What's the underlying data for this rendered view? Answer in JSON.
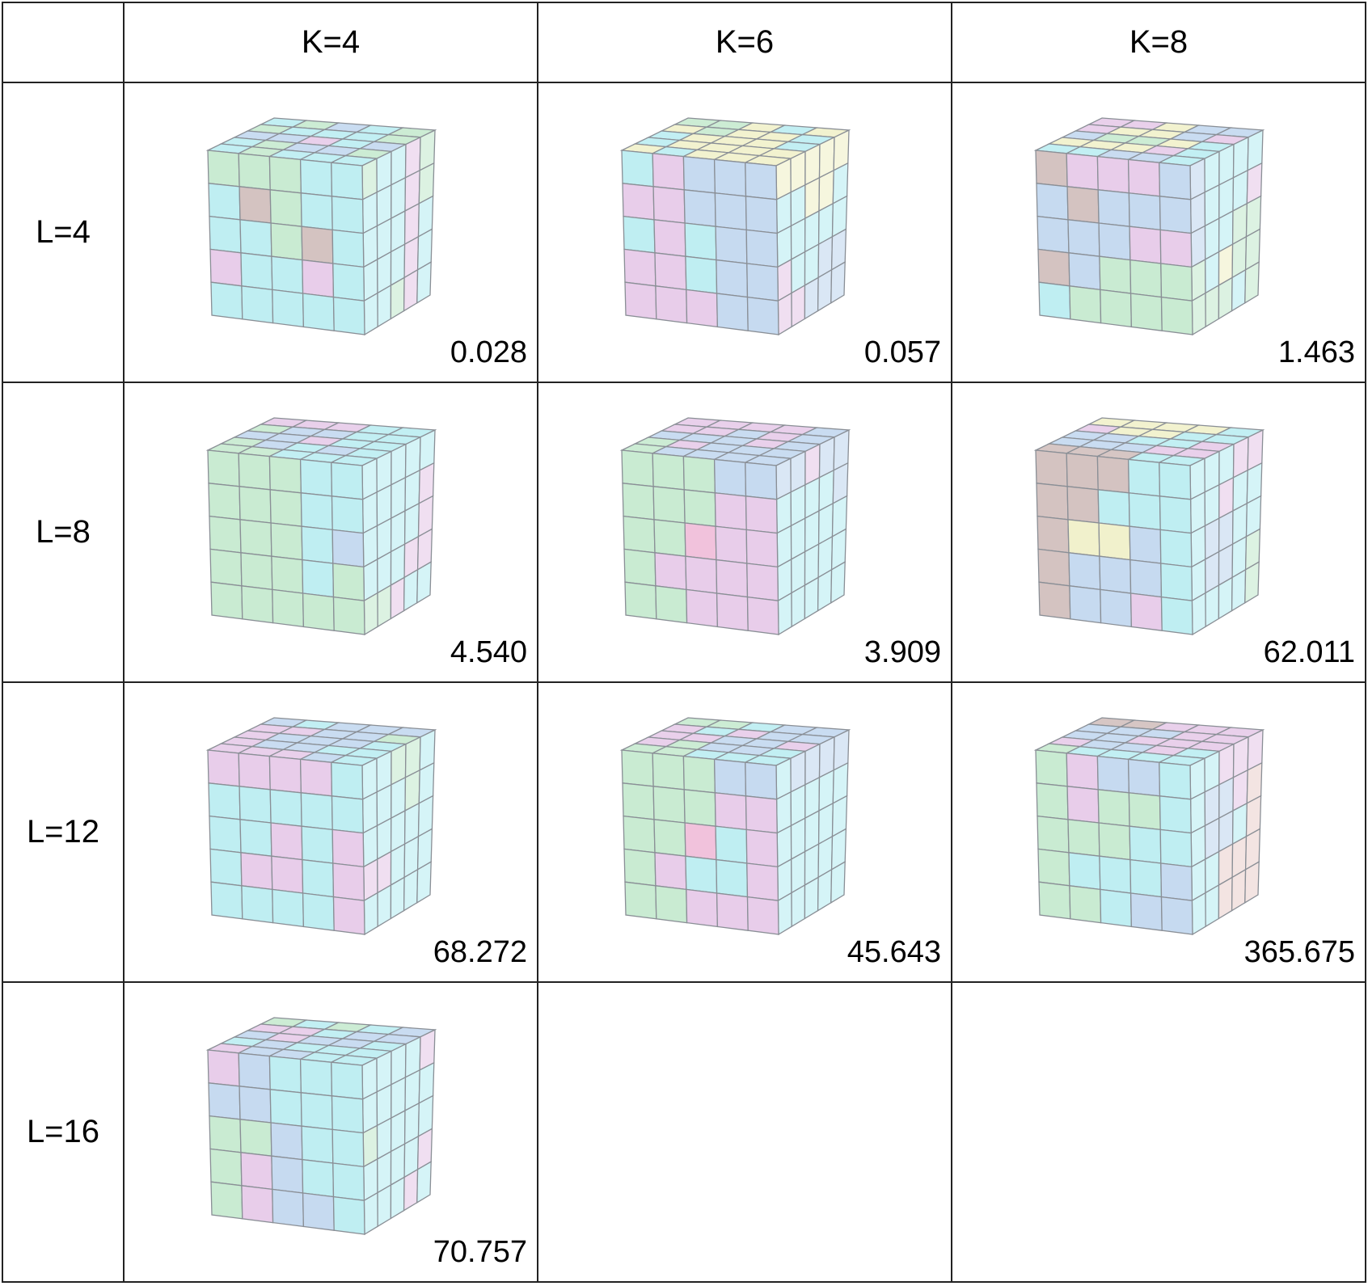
{
  "columns": [
    "",
    "K=4",
    "K=6",
    "K=8"
  ],
  "rows": [
    {
      "label": "L=4",
      "cells": [
        {
          "value": "0.028",
          "faces": {
            "front": "GGGCCCTGCCCCGTCMCCMCCCCC",
            "top": "CGBCGGCCCGBBMCBCGBBGCGCCC",
            "side": "GCCMGCCCMGCCCMCCCCMCCCGM"
          }
        },
        {
          "value": "0.057",
          "faces": {
            "front": "CMBBBMMBBBCMCBBMMCBBMMMBB",
            "top": "GGYCYYGYYCCYYYCCYYYYYCYYY",
            "side": "YYYYYCCYYCCCCCCMCCBBMMBBB"
          }
        },
        {
          "value": "1.463",
          "faces": {
            "front": "TMMMBBTBBBBBBMMTBGGGCGGGG",
            "top": "MMYBBMYYBMBGGYCYYYMCCCBBC",
            "side": "BCCCCBCCCMBCCGGGCYGGGGGCG"
          }
        }
      ]
    },
    {
      "label": "L=8",
      "cells": [
        {
          "value": "4.540",
          "faces": {
            "front": "GGGCCGGGCCGGGCBGGGCGGGGGG",
            "top": "MMMCCGBBCCBBMCCGBCBCGGCCC",
            "side": "CCCCCCCCCMCCCCMCCCMMGGMCC"
          }
        },
        {
          "value": "3.909",
          "faces": {
            "front": "GGGBBGGGMMGGRMMGMMMMGGMMM",
            "top": "MMMMBMMBMBBBBMBGMBBBGBBBB",
            "side": "BBMBBCCCCBCCCCCCCCCCCCCCC"
          }
        },
        {
          "value": "62.011",
          "faces": {
            "front": "TTTCCTTCCCTYYBCTBBBCTBBMC",
            "top": "YYYYCMYYCCBBCCMBBBMMTTTCC",
            "side": "CCCMMCCMCCCBBCCCBBCGCCCCG"
          }
        }
      ]
    },
    {
      "label": "L=12",
      "cells": [
        {
          "value": "68.272",
          "faces": {
            "front": "MMMMCCCCCCCCMCMCMMCMCCCCM",
            "top": "BCBBBMMBBGMBBBCMBBCCMMMBC",
            "side": "CCGGCCCCGCCCCCCMMCCCCCCCC"
          }
        },
        {
          "value": "45.643",
          "faces": {
            "front": "GGGBBGGGMMGGRCMGMCCMGGMMM",
            "top": "GGCBBMCMBBMMBBMMGBBCGGCCC",
            "side": "CBBBBCCCCCCCCCCCCCCCCCCCC"
          }
        },
        {
          "value": "365.675",
          "faces": {
            "front": "GMBBCGMGGCGGGCCGCCCBGGCBB",
            "top": "TTMMMBBBMMBBMMMMBBMCGCCCC",
            "side": "CCMMMCBBMPCBBCPCCPPPCCPPP"
          }
        }
      ]
    },
    {
      "label": "L=16",
      "cells": [
        {
          "value": "70.757",
          "faces": {
            "front": "MBCCCBBCCCGGBCCGMBCCGMBBC",
            "top": "GCGCBMMCBBBMBBCCBCCCMBBCC",
            "side": "CCCCMCCCCCGCCCCCCCCMCCCMC"
          }
        },
        null,
        null
      ]
    }
  ],
  "palette": {
    "G": "#c9ebd2",
    "C": "#bfeef2",
    "B": "#c6daf0",
    "M": "#e8cdea",
    "Y": "#f1f1cc",
    "T": "#d4c3c1",
    "R": "#f1c2dc",
    "P": "#ecd6d2",
    "I": "#c8c4ee"
  }
}
